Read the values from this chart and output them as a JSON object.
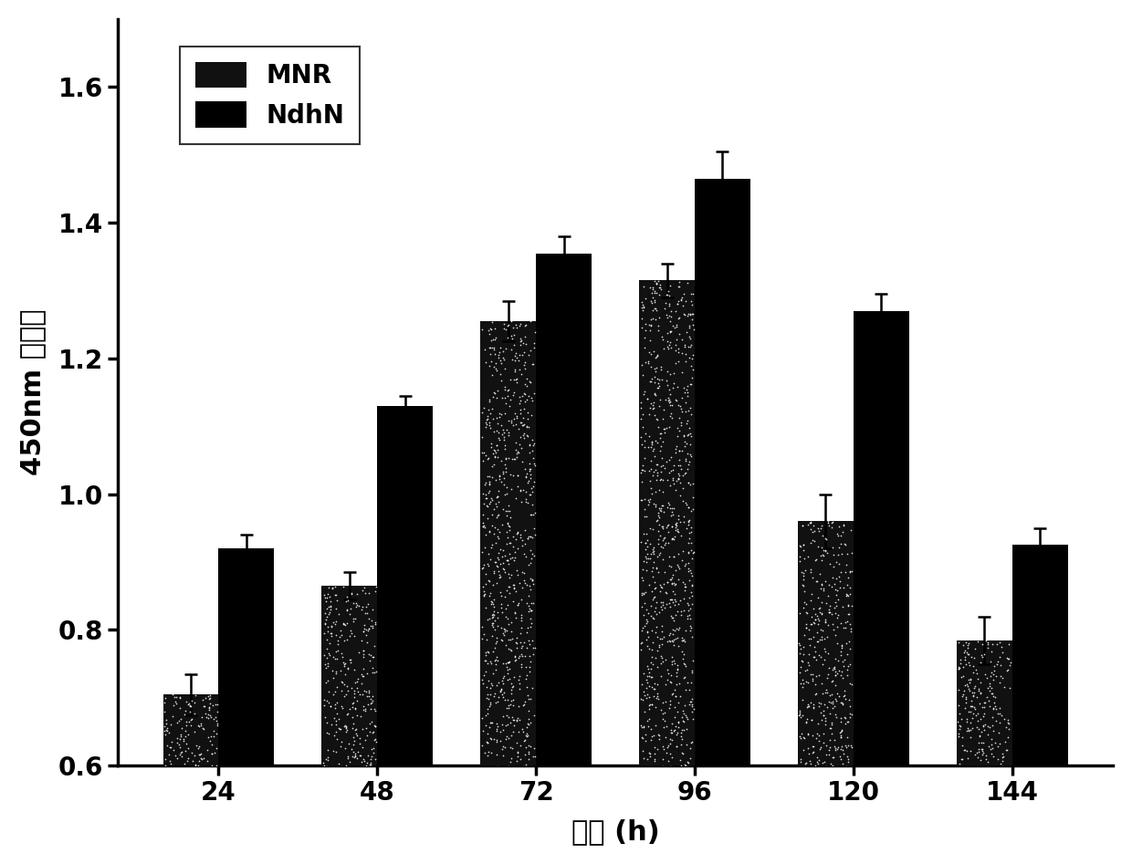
{
  "categories": [
    24,
    48,
    72,
    96,
    120,
    144
  ],
  "MNR_values": [
    0.705,
    0.865,
    1.255,
    1.315,
    0.96,
    0.785
  ],
  "NdhN_values": [
    0.92,
    1.13,
    1.355,
    1.465,
    1.27,
    0.925
  ],
  "MNR_errors": [
    0.03,
    0.02,
    0.03,
    0.025,
    0.04,
    0.035
  ],
  "NdhN_errors": [
    0.02,
    0.015,
    0.025,
    0.04,
    0.025,
    0.025
  ],
  "ylabel": "450nm 吸光值",
  "xlabel": "时间 (h)",
  "ylim": [
    0.6,
    1.7
  ],
  "yticks": [
    0.6,
    0.8,
    1.0,
    1.2,
    1.4,
    1.6
  ],
  "legend_labels": [
    "MNR",
    "NdhN"
  ],
  "MNR_color": "#111111",
  "NdhN_color": "#000000",
  "bar_width": 0.35,
  "background_color": "#ffffff",
  "tick_fontsize": 20,
  "label_fontsize": 22,
  "legend_fontsize": 20
}
